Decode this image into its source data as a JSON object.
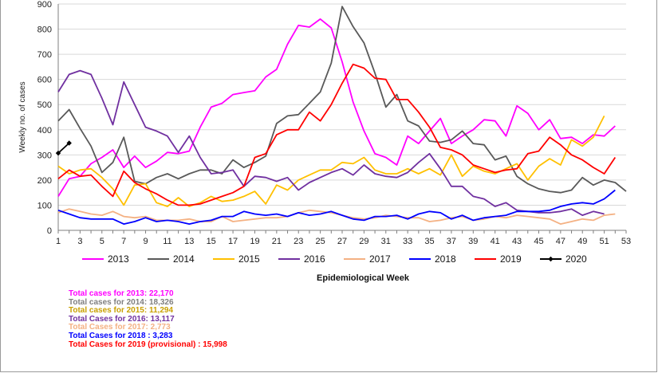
{
  "chart_data": {
    "type": "line",
    "xlabel": "Epidemiological Week",
    "ylabel": "Weekly no. of cases",
    "xlim": [
      1,
      53
    ],
    "ylim": [
      0,
      900
    ],
    "x_ticks": [
      1,
      3,
      5,
      7,
      9,
      11,
      13,
      15,
      17,
      19,
      21,
      23,
      25,
      27,
      29,
      31,
      33,
      35,
      37,
      39,
      41,
      43,
      45,
      47,
      49,
      51,
      53
    ],
    "y_ticks": [
      0,
      100,
      200,
      300,
      400,
      500,
      600,
      700,
      800,
      900
    ],
    "legend_position": "bottom",
    "series": [
      {
        "name": "2013",
        "color": "#ff00ff",
        "values": [
          135,
          205,
          215,
          265,
          290,
          320,
          250,
          295,
          250,
          275,
          310,
          305,
          315,
          410,
          490,
          505,
          540,
          548,
          555,
          610,
          640,
          740,
          815,
          808,
          840,
          805,
          670,
          510,
          395,
          305,
          290,
          260,
          375,
          345,
          395,
          445,
          345,
          375,
          400,
          440,
          435,
          375,
          495,
          465,
          400,
          440,
          365,
          370,
          345,
          380,
          375,
          415
        ]
      },
      {
        "name": "2014",
        "color": "#595959",
        "values": [
          435,
          480,
          405,
          335,
          230,
          270,
          370,
          195,
          185,
          210,
          225,
          205,
          225,
          240,
          240,
          225,
          280,
          250,
          270,
          295,
          425,
          455,
          460,
          505,
          550,
          665,
          890,
          810,
          745,
          625,
          490,
          540,
          435,
          415,
          355,
          350,
          360,
          395,
          345,
          340,
          280,
          295,
          215,
          185,
          165,
          155,
          150,
          160,
          210,
          180,
          200,
          190,
          155
        ]
      },
      {
        "name": "2015",
        "color": "#ffc000",
        "values": [
          255,
          225,
          240,
          245,
          210,
          165,
          100,
          180,
          185,
          110,
          95,
          130,
          95,
          110,
          135,
          115,
          120,
          135,
          155,
          105,
          180,
          160,
          200,
          220,
          240,
          240,
          270,
          265,
          290,
          240,
          225,
          225,
          245,
          225,
          245,
          220,
          300,
          215,
          255,
          235,
          225,
          245,
          265,
          200,
          255,
          285,
          260,
          360,
          335,
          370,
          455
        ]
      },
      {
        "name": "2016",
        "color": "#7030a0",
        "values": [
          550,
          620,
          635,
          620,
          525,
          420,
          590,
          500,
          410,
          395,
          375,
          310,
          375,
          290,
          225,
          230,
          240,
          175,
          215,
          210,
          195,
          210,
          160,
          190,
          210,
          230,
          245,
          220,
          260,
          225,
          215,
          210,
          230,
          270,
          305,
          245,
          175,
          175,
          135,
          125,
          95,
          110,
          80,
          75,
          70,
          70,
          75,
          85,
          60,
          75,
          65
        ]
      },
      {
        "name": "2017",
        "color": "#f4b183",
        "values": [
          70,
          85,
          75,
          65,
          60,
          75,
          55,
          50,
          55,
          40,
          40,
          40,
          45,
          35,
          35,
          55,
          35,
          40,
          45,
          50,
          50,
          55,
          70,
          80,
          75,
          70,
          60,
          50,
          45,
          50,
          60,
          55,
          50,
          50,
          35,
          40,
          50,
          55,
          40,
          45,
          55,
          50,
          60,
          55,
          50,
          45,
          25,
          35,
          45,
          40,
          60,
          65
        ]
      },
      {
        "name": "2018",
        "color": "#0000ff",
        "values": [
          80,
          65,
          50,
          45,
          45,
          45,
          25,
          35,
          50,
          35,
          40,
          35,
          25,
          35,
          40,
          55,
          55,
          75,
          65,
          60,
          65,
          55,
          70,
          60,
          65,
          75,
          60,
          45,
          40,
          55,
          55,
          60,
          45,
          65,
          75,
          70,
          45,
          60,
          40,
          50,
          55,
          60,
          75,
          75,
          75,
          80,
          95,
          105,
          110,
          105,
          125,
          160
        ]
      },
      {
        "name": "2019",
        "color": "#ff0000",
        "values": [
          205,
          240,
          215,
          220,
          175,
          135,
          235,
          190,
          165,
          145,
          120,
          100,
          100,
          105,
          120,
          135,
          150,
          175,
          290,
          305,
          380,
          400,
          400,
          470,
          435,
          500,
          585,
          660,
          645,
          605,
          600,
          520,
          520,
          470,
          410,
          330,
          320,
          300,
          260,
          245,
          230,
          240,
          245,
          305,
          315,
          370,
          340,
          300,
          280,
          250,
          225,
          290
        ]
      },
      {
        "name": "2020",
        "color": "#000000",
        "markers": true,
        "values": [
          307,
          347
        ]
      }
    ],
    "totals": [
      {
        "text": "Total cases for 2013: 22,170",
        "color": "#ff00ff"
      },
      {
        "text": "Total cases for 2014: 18,326",
        "color": "#7f7f7f"
      },
      {
        "text": "Total cases for 2015: 11,294",
        "color": "#c9a000"
      },
      {
        "text": "Total Cases for 2016: 13,117",
        "color": "#7030a0"
      },
      {
        "text": "Total Cases for 2017: 2,773",
        "color": "#f4b183"
      },
      {
        "text": "Total Cases for 2018 : 3,283",
        "color": "#0000ff"
      },
      {
        "text": "Total Cases for 2019 (provisional) : 15,998",
        "color": "#ff0000"
      }
    ]
  }
}
